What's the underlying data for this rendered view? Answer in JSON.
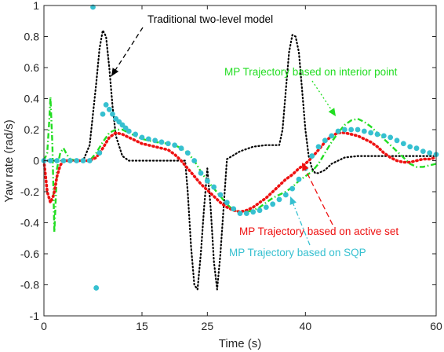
{
  "chart_data": {
    "type": "line",
    "title": "",
    "xlabel": "Time (s)",
    "ylabel": "Yaw rate (rad/s)",
    "xlim": [
      0,
      60
    ],
    "ylim": [
      -1,
      1
    ],
    "xticks": [
      0,
      15,
      25,
      40,
      60
    ],
    "yticks": [
      1,
      0.8,
      0.6,
      0.4,
      0.2,
      0,
      -0.2,
      -0.4,
      -0.6,
      -0.8,
      -1
    ],
    "grid": false,
    "legend": "none",
    "series": [
      {
        "name": "Traditional two-level model",
        "color": "#000000",
        "style": "dotted",
        "x": [
          0,
          2,
          4,
          6,
          7,
          8,
          8.5,
          9,
          9.5,
          10,
          10.5,
          11,
          12,
          13,
          14,
          16,
          18,
          20,
          21,
          21.6,
          22,
          22.5,
          23,
          23.5,
          24,
          24.5,
          25,
          25.5,
          26,
          26.5,
          27,
          28,
          30,
          32,
          34,
          36,
          36.5,
          37,
          37.5,
          38,
          38.5,
          39,
          39.5,
          40,
          40.5,
          41,
          41.5,
          42,
          43,
          44,
          46,
          48,
          50,
          52,
          54,
          56,
          58,
          60
        ],
        "y": [
          0,
          0,
          0,
          0,
          0.1,
          0.5,
          0.72,
          0.84,
          0.8,
          0.6,
          0.35,
          0.16,
          0.03,
          0,
          0,
          0,
          0,
          0,
          0,
          0,
          -0.2,
          -0.55,
          -0.8,
          -0.83,
          -0.6,
          -0.3,
          -0.05,
          -0.3,
          -0.65,
          -0.83,
          -0.6,
          0.01,
          0.06,
          0.09,
          0.1,
          0.1,
          0.2,
          0.45,
          0.7,
          0.81,
          0.8,
          0.7,
          0.45,
          0.2,
          0.03,
          -0.05,
          -0.08,
          -0.08,
          -0.06,
          -0.02,
          0.02,
          0.03,
          0.03,
          0.03,
          0.03,
          0.03,
          0.03,
          0.03
        ]
      },
      {
        "name": "MP Trajectory based on interior point",
        "color": "#22dd22",
        "style": "dashdot",
        "x": [
          0,
          0.5,
          0.8,
          1.0,
          1.3,
          1.6,
          2.0,
          2.5,
          3,
          3.5,
          4,
          5,
          6,
          7,
          8,
          9,
          9.5,
          10,
          11,
          12,
          13,
          14,
          15,
          17,
          19,
          20,
          21,
          22,
          23,
          24,
          25,
          26,
          27,
          28,
          29,
          30,
          31,
          32,
          33,
          34,
          35,
          36,
          37,
          38,
          39,
          40,
          41,
          42,
          43,
          44,
          45,
          46,
          47,
          48,
          49,
          50,
          51,
          52,
          53,
          54,
          55,
          56,
          57,
          58,
          59,
          60
        ],
        "y": [
          0,
          0.05,
          0.25,
          0.41,
          0.1,
          -0.46,
          -0.05,
          0.05,
          0.08,
          0.04,
          0.01,
          0,
          0,
          0,
          0.05,
          0.12,
          0.15,
          0.18,
          0.2,
          0.2,
          0.18,
          0.16,
          0.14,
          0.12,
          0.11,
          0.1,
          0.08,
          0.05,
          0,
          -0.07,
          -0.13,
          -0.18,
          -0.23,
          -0.28,
          -0.32,
          -0.33,
          -0.33,
          -0.32,
          -0.3,
          -0.27,
          -0.24,
          -0.22,
          -0.2,
          -0.17,
          -0.13,
          -0.1,
          -0.07,
          -0.02,
          0.05,
          0.12,
          0.18,
          0.23,
          0.26,
          0.27,
          0.25,
          0.22,
          0.18,
          0.14,
          0.1,
          0.06,
          0.02,
          -0.02,
          -0.04,
          -0.04,
          -0.03,
          -0.02
        ]
      },
      {
        "name": "MP Trajectory based on active set",
        "color": "#ee1111",
        "style": "dotted",
        "x": [
          0,
          0.5,
          1.0,
          1.5,
          2.0,
          2.5,
          3,
          4,
          5,
          6,
          7,
          8,
          9,
          10,
          11,
          12,
          13,
          14,
          15,
          16,
          17,
          18,
          19,
          20,
          21,
          22,
          23,
          24,
          25,
          26,
          27,
          28,
          29,
          30,
          31,
          32,
          33,
          34,
          35,
          36,
          37,
          38,
          39,
          40,
          41,
          42,
          43,
          44,
          45,
          46,
          47,
          48,
          49,
          50,
          51,
          52,
          53,
          54,
          55,
          56,
          57,
          58,
          59,
          60
        ],
        "y": [
          0,
          -0.2,
          -0.27,
          -0.22,
          -0.1,
          -0.03,
          0,
          0,
          0,
          0,
          0,
          0.02,
          0.08,
          0.15,
          0.18,
          0.17,
          0.15,
          0.13,
          0.11,
          0.1,
          0.09,
          0.08,
          0.07,
          0.04,
          0,
          -0.05,
          -0.1,
          -0.15,
          -0.19,
          -0.23,
          -0.27,
          -0.3,
          -0.32,
          -0.33,
          -0.32,
          -0.3,
          -0.27,
          -0.24,
          -0.2,
          -0.16,
          -0.12,
          -0.09,
          -0.05,
          -0.02,
          0.02,
          0.07,
          0.12,
          0.16,
          0.18,
          0.18,
          0.17,
          0.16,
          0.14,
          0.12,
          0.09,
          0.05,
          0.02,
          0,
          -0.01,
          -0.01,
          0,
          0.01,
          0.01,
          0.02
        ]
      },
      {
        "name": "MP Trajectory based on SQP",
        "color": "#36c0d0",
        "style": "markers",
        "x": [
          0,
          1,
          2,
          3,
          4,
          5,
          6,
          7,
          7.5,
          8,
          8.5,
          9,
          9.5,
          10,
          10.5,
          11,
          11.5,
          12,
          12.5,
          13,
          14,
          15,
          16,
          17,
          18,
          19,
          20,
          21,
          22,
          23,
          24,
          25,
          26,
          27,
          28,
          29,
          30,
          31,
          32,
          33,
          34,
          35,
          36,
          37,
          38,
          39,
          40,
          41,
          42,
          43,
          44,
          45,
          46,
          47,
          48,
          49,
          50,
          51,
          52,
          53,
          54,
          55,
          56,
          57,
          58,
          59,
          60
        ],
        "y": [
          0,
          0,
          0,
          0,
          0,
          0,
          0,
          0,
          0.99,
          -0.82,
          0.05,
          0.3,
          0.36,
          0.33,
          0.3,
          0.27,
          0.25,
          0.23,
          0.21,
          0.19,
          0.17,
          0.15,
          0.14,
          0.13,
          0.12,
          0.11,
          0.1,
          0.08,
          0.05,
          0,
          -0.08,
          -0.13,
          -0.17,
          -0.22,
          -0.27,
          -0.31,
          -0.34,
          -0.34,
          -0.33,
          -0.32,
          -0.3,
          -0.28,
          -0.25,
          -0.22,
          -0.18,
          -0.12,
          -0.05,
          0.03,
          0.09,
          0.13,
          0.16,
          0.19,
          0.2,
          0.2,
          0.2,
          0.19,
          0.18,
          0.17,
          0.16,
          0.15,
          0.13,
          0.11,
          0.09,
          0.08,
          0.06,
          0.05,
          0.04
        ]
      }
    ],
    "annotations": [
      {
        "text": "Traditional two-level model",
        "color": "#000000",
        "arrow": "dashed"
      },
      {
        "text": "MP Trajectory based on interior point",
        "color": "#22dd22",
        "arrow": "dotted"
      },
      {
        "text": "MP Trajectory based on active set",
        "color": "#ee1111",
        "arrow": "dashed"
      },
      {
        "text": "MP Trajectory based on SQP",
        "color": "#36c0d0",
        "arrow": "dashdot"
      }
    ]
  }
}
